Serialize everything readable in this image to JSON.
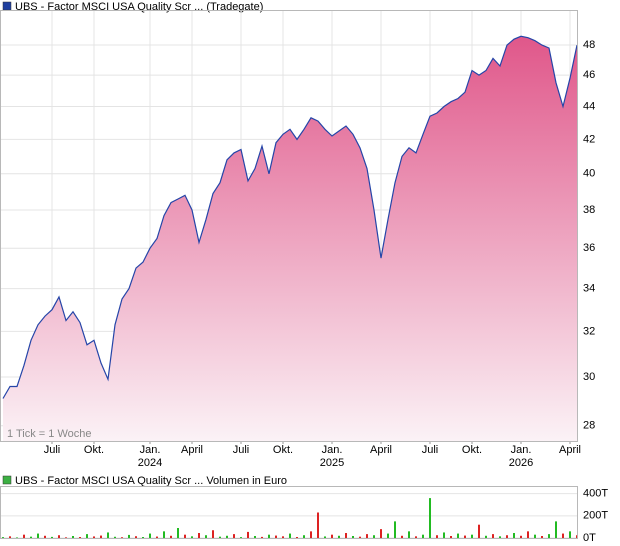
{
  "chart_data": [
    {
      "type": "area",
      "title": "UBS - Factor MSCI USA Quality Scr ... (Tradegate)",
      "note": "1 Tick = 1 Woche",
      "legend_color": "#1f3f9f",
      "line_color": "#2545a8",
      "fill_top": "#e0578a",
      "fill_bottom": "#fbf2f6",
      "log_scale": true,
      "grid": true,
      "categories": [
        null,
        null,
        null,
        null,
        null,
        null,
        null,
        "Juli",
        null,
        null,
        null,
        null,
        null,
        "Okt.",
        null,
        null,
        null,
        null,
        null,
        null,
        null,
        "Jan. 2024",
        null,
        null,
        null,
        null,
        null,
        "April",
        null,
        null,
        null,
        null,
        null,
        null,
        "Juli",
        null,
        null,
        null,
        null,
        null,
        "Okt.",
        null,
        null,
        null,
        null,
        null,
        null,
        "Jan. 2025",
        null,
        null,
        null,
        null,
        null,
        null,
        "April",
        null,
        null,
        null,
        null,
        null,
        null,
        "Juli",
        null,
        null,
        null,
        null,
        null,
        "Okt.",
        null,
        null,
        null,
        null,
        null,
        null,
        "Jan. 2026",
        null,
        null,
        null,
        null,
        null,
        null,
        "April",
        null
      ],
      "values": [
        29.1,
        29.6,
        29.6,
        30.5,
        31.6,
        32.3,
        32.7,
        33.0,
        33.6,
        32.5,
        32.9,
        32.4,
        31.4,
        31.6,
        30.6,
        29.9,
        32.3,
        33.5,
        34.0,
        35.0,
        35.3,
        36.0,
        36.5,
        37.7,
        38.4,
        38.6,
        38.8,
        38.0,
        36.3,
        37.5,
        38.9,
        39.5,
        40.8,
        41.2,
        41.4,
        39.6,
        40.3,
        41.6,
        40.0,
        41.8,
        42.3,
        42.6,
        42.0,
        42.6,
        43.3,
        43.1,
        42.6,
        42.2,
        42.5,
        42.8,
        42.3,
        41.5,
        40.3,
        38.0,
        35.5,
        37.5,
        39.5,
        41.0,
        41.5,
        41.2,
        42.3,
        43.4,
        43.6,
        44.0,
        44.3,
        44.5,
        44.9,
        46.3,
        46.0,
        46.3,
        47.1,
        46.6,
        48.0,
        48.4,
        48.6,
        48.5,
        48.3,
        48.0,
        47.8,
        45.5,
        44.0,
        45.8,
        48.0
      ],
      "ylim": [
        27.4,
        50.3
      ],
      "yticks": [
        28,
        30,
        32,
        34,
        36,
        38,
        40,
        42,
        44,
        46,
        48
      ]
    },
    {
      "type": "bar",
      "title": "UBS - Factor MSCI USA Quality Scr ... Volumen in Euro",
      "legend_color": "#3cb043",
      "values": [
        8000,
        15000,
        5000,
        30000,
        12000,
        40000,
        20000,
        10000,
        25000,
        6000,
        18000,
        9000,
        35000,
        14000,
        22000,
        50000,
        11000,
        7000,
        28000,
        16000,
        9000,
        40000,
        13000,
        60000,
        20000,
        90000,
        30000,
        15000,
        45000,
        25000,
        70000,
        12000,
        20000,
        35000,
        8000,
        55000,
        18000,
        10000,
        30000,
        22000,
        15000,
        40000,
        9000,
        25000,
        60000,
        230000,
        14000,
        30000,
        20000,
        45000,
        18000,
        12000,
        35000,
        25000,
        80000,
        40000,
        150000,
        20000,
        60000,
        15000,
        30000,
        360000,
        25000,
        50000,
        18000,
        40000,
        22000,
        30000,
        120000,
        20000,
        35000,
        15000,
        25000,
        45000,
        20000,
        60000,
        30000,
        18000,
        35000,
        150000,
        40000,
        60000,
        25000
      ],
      "colors": [
        "#2b2",
        "#d22",
        "#2b2",
        "#d22",
        "#2b2",
        "#2b2",
        "#d22",
        "#2b2",
        "#d22",
        "#d22",
        "#2b2",
        "#d22",
        "#2b2",
        "#d22",
        "#d22",
        "#2b2",
        "#2b2",
        "#d22",
        "#2b2",
        "#d22",
        "#2b2",
        "#2b2",
        "#d22",
        "#2b2",
        "#d22",
        "#2b2",
        "#d22",
        "#2b2",
        "#d22",
        "#2b2",
        "#d22",
        "#2b2",
        "#2b2",
        "#d22",
        "#2b2",
        "#d22",
        "#2b2",
        "#d22",
        "#2b2",
        "#d22",
        "#d22",
        "#2b2",
        "#d22",
        "#2b2",
        "#d22",
        "#d22",
        "#2b2",
        "#d22",
        "#2b2",
        "#d22",
        "#2b2",
        "#d22",
        "#d22",
        "#2b2",
        "#d22",
        "#2b2",
        "#2b2",
        "#d22",
        "#2b2",
        "#d22",
        "#2b2",
        "#2b2",
        "#d22",
        "#2b2",
        "#d22",
        "#2b2",
        "#d22",
        "#2b2",
        "#d22",
        "#2b2",
        "#d22",
        "#2b2",
        "#d22",
        "#2b2",
        "#d22",
        "#d22",
        "#2b2",
        "#d22",
        "#2b2",
        "#2b2",
        "#d22",
        "#2b2",
        "#d22"
      ],
      "ylim": [
        0,
        460000
      ],
      "yticks": [
        {
          "value": 0,
          "label": "0T"
        },
        {
          "value": 200000,
          "label": "200T"
        },
        {
          "value": 400000,
          "label": "400T"
        }
      ]
    }
  ]
}
